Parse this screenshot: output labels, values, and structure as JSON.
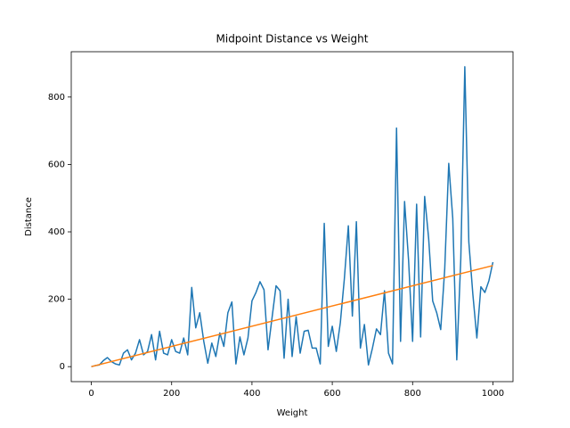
{
  "chart_data": {
    "type": "line",
    "title": "Midpoint Distance vs Weight",
    "x_label": "Weight",
    "y_label": "Distance",
    "xlim": [
      -50,
      1050
    ],
    "ylim": [
      -44.5,
      934.5
    ],
    "xticks": [
      0,
      200,
      400,
      600,
      800,
      1000
    ],
    "yticks": [
      0,
      200,
      400,
      600,
      800
    ],
    "series": [
      {
        "color": "#1f77b4",
        "x": [
          0,
          10,
          20,
          30,
          40,
          50,
          60,
          70,
          80,
          90,
          100,
          110,
          120,
          130,
          140,
          150,
          160,
          170,
          180,
          190,
          200,
          210,
          220,
          230,
          240,
          250,
          260,
          270,
          280,
          290,
          300,
          310,
          320,
          330,
          340,
          350,
          360,
          370,
          380,
          390,
          400,
          410,
          420,
          430,
          440,
          450,
          460,
          470,
          480,
          490,
          500,
          510,
          520,
          530,
          540,
          550,
          560,
          570,
          580,
          590,
          600,
          610,
          620,
          630,
          640,
          650,
          660,
          670,
          680,
          690,
          700,
          710,
          720,
          730,
          740,
          750,
          760,
          770,
          780,
          790,
          800,
          810,
          820,
          830,
          840,
          850,
          860,
          870,
          880,
          890,
          900,
          910,
          920,
          930,
          940,
          950,
          960,
          970,
          980,
          990,
          1000
        ],
        "values": [
          0,
          3,
          5,
          18,
          27,
          15,
          8,
          5,
          40,
          50,
          20,
          40,
          80,
          35,
          45,
          95,
          20,
          105,
          40,
          35,
          80,
          45,
          40,
          85,
          35,
          235,
          115,
          160,
          75,
          10,
          70,
          30,
          100,
          60,
          160,
          192,
          8,
          88,
          35,
          85,
          195,
          220,
          252,
          228,
          50,
          145,
          240,
          225,
          25,
          200,
          30,
          148,
          40,
          105,
          108,
          55,
          55,
          8,
          425,
          60,
          120,
          45,
          130,
          260,
          418,
          150,
          430,
          55,
          125,
          5,
          55,
          112,
          95,
          225,
          40,
          8,
          708,
          75,
          490,
          315,
          75,
          482,
          88,
          505,
          380,
          195,
          160,
          110,
          290,
          603,
          440,
          20,
          320,
          890,
          370,
          215,
          85,
          237,
          220,
          255,
          310
        ]
      },
      {
        "color": "#ff7f0e",
        "x": [
          0,
          1000
        ],
        "values": [
          0,
          300
        ]
      }
    ]
  }
}
